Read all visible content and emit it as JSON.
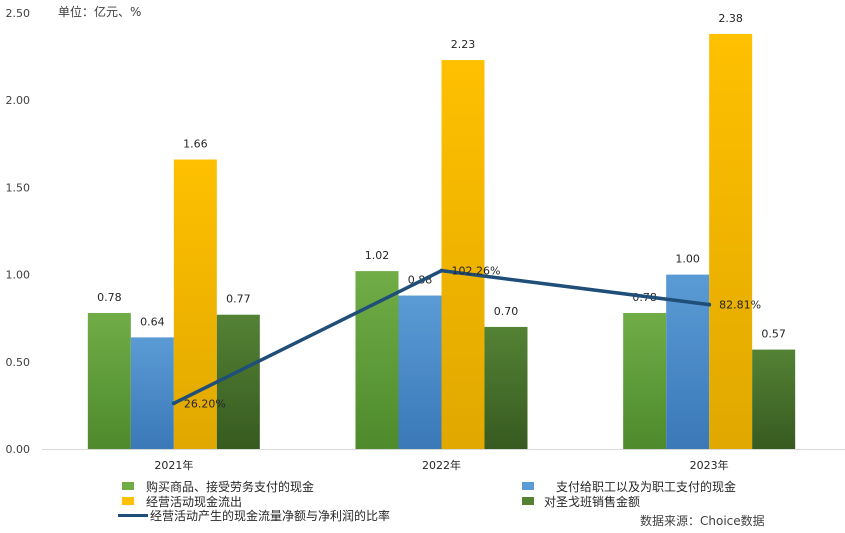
{
  "chart_data": {
    "type": "bar",
    "unit_note": "单位：亿元、%",
    "source_note": "数据来源：Choice数据",
    "categories": [
      "2021年",
      "2022年",
      "2023年"
    ],
    "ylim": [
      0,
      2.5
    ],
    "yticks": [
      0,
      0.5,
      1.0,
      1.5,
      2.0,
      2.5
    ],
    "ytick_labels": [
      "0.00",
      "0.50",
      "1.00",
      "1.50",
      "2.00",
      "2.50"
    ],
    "series": [
      {
        "name": "购买商品、接受劳务支付的现金",
        "values": [
          0.78,
          1.02,
          0.78
        ],
        "labels": [
          "0.78",
          "1.02",
          "0.78"
        ],
        "color": "#70AD47",
        "color_dark": "#4E8A2C"
      },
      {
        "name": "支付给职工以及为职工支付的现金",
        "values": [
          0.64,
          0.88,
          1.0
        ],
        "labels": [
          "0.64",
          "0.88",
          "1.00"
        ],
        "color": "#5B9BD5",
        "color_dark": "#3A78B8"
      },
      {
        "name": "经营活动现金流出",
        "values": [
          1.66,
          2.23,
          2.38
        ],
        "labels": [
          "1.66",
          "2.23",
          "2.38"
        ],
        "color": "#FFC000",
        "color_dark": "#E0A800"
      },
      {
        "name": "对圣戈班销售金额",
        "values": [
          0.77,
          0.7,
          0.57
        ],
        "labels": [
          "0.77",
          "0.70",
          "0.57"
        ],
        "color": "#548235",
        "color_dark": "#375A20"
      }
    ],
    "line_series": {
      "name": "经营活动产生的现金流量净额与净利润的比率",
      "values": [
        26.2,
        102.26,
        82.81
      ],
      "labels": [
        "26.20%",
        "102.26%",
        "82.81%"
      ],
      "color": "#1F4E79"
    }
  }
}
